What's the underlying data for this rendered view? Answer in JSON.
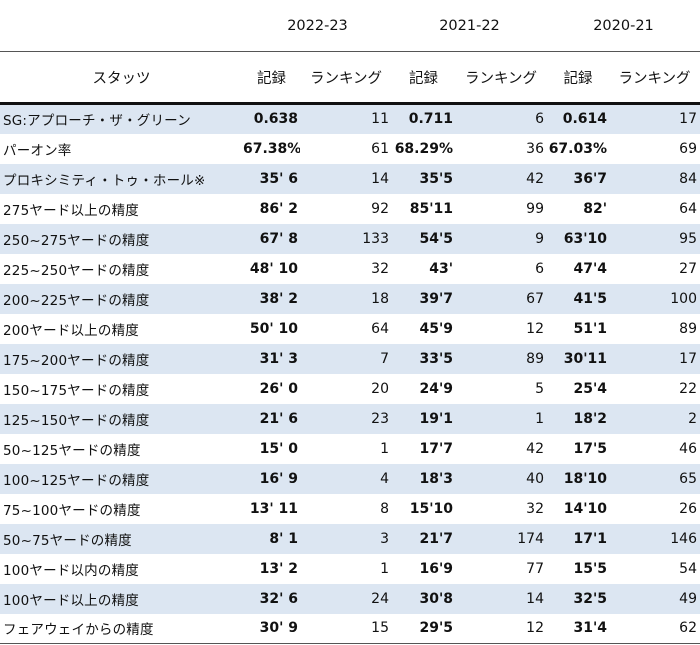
{
  "seasons": [
    "2022-23",
    "2021-22",
    "2020-21"
  ],
  "columns": {
    "stat": "スタッツ",
    "record": "記録",
    "ranking": "ランキング"
  },
  "rows": [
    {
      "stat": "SG:アプローチ・ザ・グリーン",
      "r1": "0.638",
      "k1": "11",
      "r2": "0.711",
      "k2": "6",
      "r3": "0.614",
      "k3": "17"
    },
    {
      "stat": "パーオン率",
      "r1": "67.38%",
      "k1": "61",
      "r2": "68.29%",
      "k2": "36",
      "r3": "67.03%",
      "k3": "69"
    },
    {
      "stat": "プロキシミティ・トゥ・ホール※",
      "r1": "35' 6",
      "k1": "14",
      "r2": "35'5",
      "k2": "42",
      "r3": "36'7",
      "k3": "84"
    },
    {
      "stat": "275ヤード以上の精度",
      "r1": "86' 2",
      "k1": "92",
      "r2": "85'11",
      "k2": "99",
      "r3": "82'",
      "k3": "64"
    },
    {
      "stat": "250~275ヤードの精度",
      "r1": "67' 8",
      "k1": "133",
      "r2": "54'5",
      "k2": "9",
      "r3": "63'10",
      "k3": "95"
    },
    {
      "stat": "225~250ヤードの精度",
      "r1": "48' 10",
      "k1": "32",
      "r2": "43'",
      "k2": "6",
      "r3": "47'4",
      "k3": "27"
    },
    {
      "stat": "200~225ヤードの精度",
      "r1": "38' 2",
      "k1": "18",
      "r2": "39'7",
      "k2": "67",
      "r3": "41'5",
      "k3": "100"
    },
    {
      "stat": "200ヤード以上の精度",
      "r1": "50' 10",
      "k1": "64",
      "r2": "45'9",
      "k2": "12",
      "r3": "51'1",
      "k3": "89"
    },
    {
      "stat": "175~200ヤードの精度",
      "r1": "31' 3",
      "k1": "7",
      "r2": "33'5",
      "k2": "89",
      "r3": "30'11",
      "k3": "17"
    },
    {
      "stat": "150~175ヤードの精度",
      "r1": "26' 0",
      "k1": "20",
      "r2": "24'9",
      "k2": "5",
      "r3": "25'4",
      "k3": "22"
    },
    {
      "stat": "125~150ヤードの精度",
      "r1": "21' 6",
      "k1": "23",
      "r2": "19'1",
      "k2": "1",
      "r3": "18'2",
      "k3": "2"
    },
    {
      "stat": "50~125ヤードの精度",
      "r1": "15' 0",
      "k1": "1",
      "r2": "17'7",
      "k2": "42",
      "r3": "17'5",
      "k3": "46"
    },
    {
      "stat": "100~125ヤードの精度",
      "r1": "16' 9",
      "k1": "4",
      "r2": "18'3",
      "k2": "40",
      "r3": "18'10",
      "k3": "65"
    },
    {
      "stat": "75~100ヤードの精度",
      "r1": "13' 11",
      "k1": "8",
      "r2": "15'10",
      "k2": "32",
      "r3": "14'10",
      "k3": "26"
    },
    {
      "stat": "50~75ヤードの精度",
      "r1": "8' 1",
      "k1": "3",
      "r2": "21'7",
      "k2": "174",
      "r3": "17'1",
      "k3": "146"
    },
    {
      "stat": "100ヤード以内の精度",
      "r1": "13' 2",
      "k1": "1",
      "r2": "16'9",
      "k2": "77",
      "r3": "15'5",
      "k3": "54"
    },
    {
      "stat": "100ヤード以上の精度",
      "r1": "32' 6",
      "k1": "24",
      "r2": "30'8",
      "k2": "14",
      "r3": "32'5",
      "k3": "49"
    },
    {
      "stat": "フェアウェイからの精度",
      "r1": "30' 9",
      "k1": "15",
      "r2": "29'5",
      "k2": "12",
      "r3": "31'4",
      "k3": "62"
    }
  ]
}
